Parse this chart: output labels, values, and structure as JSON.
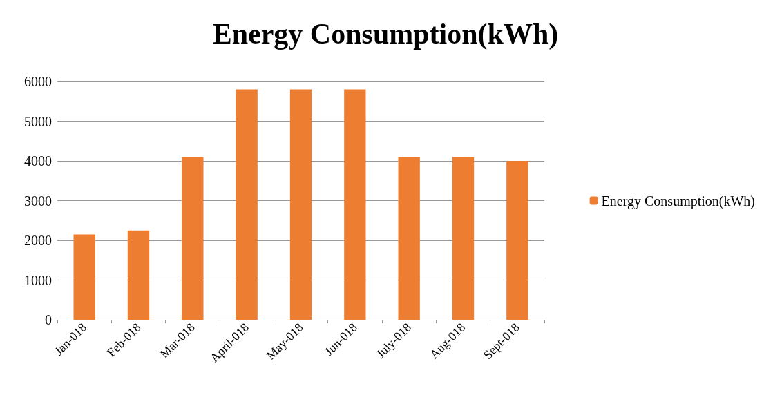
{
  "chart_data": {
    "type": "bar",
    "title": "Energy Consumption(kWh)",
    "categories": [
      "Jan-018",
      "Feb-018",
      "Mar-018",
      "April-018",
      "May-018",
      "Jun-018",
      "July-018",
      "Aug-018",
      "Sept-018"
    ],
    "series": [
      {
        "name": "Energy Consumption(kWh)",
        "color": "#ed7d31",
        "values": [
          2150,
          2250,
          4100,
          5800,
          5800,
          5800,
          4100,
          4100,
          4000
        ]
      }
    ],
    "ylim": [
      0,
      6000
    ],
    "yticks": [
      0,
      1000,
      2000,
      3000,
      4000,
      5000,
      6000
    ],
    "grid": "y",
    "legend": "right"
  }
}
